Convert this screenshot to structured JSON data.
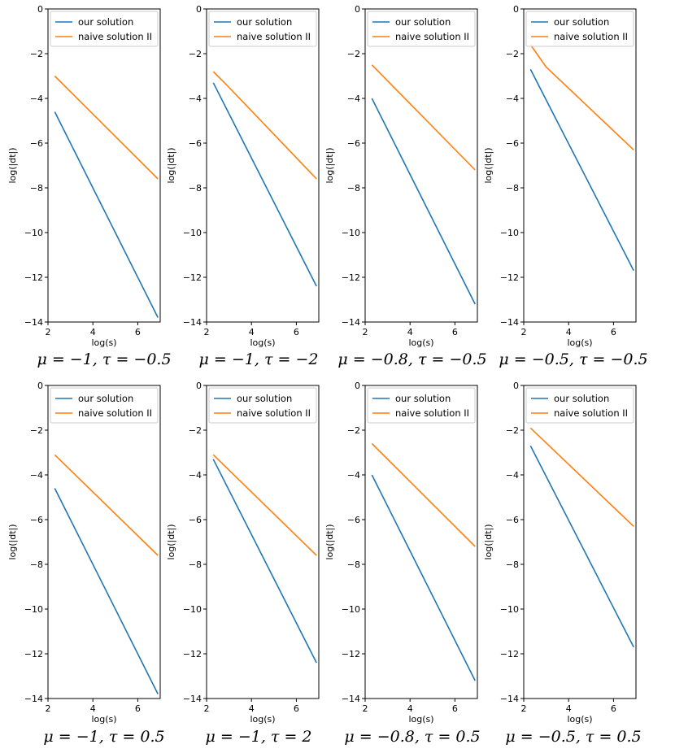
{
  "colors": {
    "our": "#1f77b4",
    "naive": "#ff7f0e"
  },
  "chart_data": [
    {
      "type": "line",
      "caption": "μ = −1, τ = −0.5",
      "xlabel": "log(s)",
      "ylabel": "log(|dt|)",
      "xlim": [
        2,
        7
      ],
      "ylim": [
        -14,
        0
      ],
      "xticks": [
        2,
        4,
        6
      ],
      "yticks": [
        0,
        -2,
        -4,
        -6,
        -8,
        -10,
        -12,
        -14
      ],
      "legend_position": "top-right",
      "series": [
        {
          "name": "our solution",
          "x": [
            2.3,
            6.9
          ],
          "y": [
            -4.6,
            -13.8
          ]
        },
        {
          "name": "naive solution II",
          "x": [
            2.3,
            6.9
          ],
          "y": [
            -3.0,
            -7.6
          ]
        }
      ]
    },
    {
      "type": "line",
      "caption": "μ = −1, τ = −2",
      "xlabel": "log(s)",
      "ylabel": "log(|dt|)",
      "xlim": [
        2,
        7
      ],
      "ylim": [
        -14,
        0
      ],
      "xticks": [
        2,
        4,
        6
      ],
      "yticks": [
        0,
        -2,
        -4,
        -6,
        -8,
        -10,
        -12,
        -14
      ],
      "legend_position": "top-right",
      "series": [
        {
          "name": "our solution",
          "x": [
            2.3,
            6.9
          ],
          "y": [
            -3.3,
            -12.4
          ]
        },
        {
          "name": "naive solution II",
          "x": [
            2.3,
            2.9,
            6.9
          ],
          "y": [
            -2.8,
            -3.4,
            -7.6
          ]
        }
      ]
    },
    {
      "type": "line",
      "caption": "μ = −0.8, τ = −0.5",
      "xlabel": "log(s)",
      "ylabel": "log(|dt|)",
      "xlim": [
        2,
        7
      ],
      "ylim": [
        -14,
        0
      ],
      "xticks": [
        2,
        4,
        6
      ],
      "yticks": [
        0,
        -2,
        -4,
        -6,
        -8,
        -10,
        -12,
        -14
      ],
      "legend_position": "top-right",
      "series": [
        {
          "name": "our solution",
          "x": [
            2.3,
            6.9
          ],
          "y": [
            -4.0,
            -13.2
          ]
        },
        {
          "name": "naive solution II",
          "x": [
            2.3,
            6.9
          ],
          "y": [
            -2.5,
            -7.2
          ]
        }
      ]
    },
    {
      "type": "line",
      "caption": "μ = −0.5, τ = −0.5",
      "xlabel": "log(s)",
      "ylabel": "log(|dt|)",
      "xlim": [
        2,
        7
      ],
      "ylim": [
        -14,
        0
      ],
      "xticks": [
        2,
        4,
        6
      ],
      "yticks": [
        0,
        -2,
        -4,
        -6,
        -8,
        -10,
        -12,
        -14
      ],
      "legend_position": "top-right",
      "series": [
        {
          "name": "our solution",
          "x": [
            2.3,
            6.9
          ],
          "y": [
            -2.7,
            -11.7
          ]
        },
        {
          "name": "naive solution II",
          "x": [
            2.3,
            3.0,
            6.9
          ],
          "y": [
            -1.6,
            -2.6,
            -6.3
          ]
        }
      ]
    },
    {
      "type": "line",
      "caption": "μ = −1, τ = 0.5",
      "xlabel": "log(s)",
      "ylabel": "log(|dt|)",
      "xlim": [
        2,
        7
      ],
      "ylim": [
        -14,
        0
      ],
      "xticks": [
        2,
        4,
        6
      ],
      "yticks": [
        0,
        -2,
        -4,
        -6,
        -8,
        -10,
        -12,
        -14
      ],
      "legend_position": "top-right",
      "series": [
        {
          "name": "our solution",
          "x": [
            2.3,
            6.9
          ],
          "y": [
            -4.6,
            -13.8
          ]
        },
        {
          "name": "naive solution II",
          "x": [
            2.3,
            6.9
          ],
          "y": [
            -3.1,
            -7.6
          ]
        }
      ]
    },
    {
      "type": "line",
      "caption": "μ = −1, τ = 2",
      "xlabel": "log(s)",
      "ylabel": "log(|dt|)",
      "xlim": [
        2,
        7
      ],
      "ylim": [
        -14,
        0
      ],
      "xticks": [
        2,
        4,
        6
      ],
      "yticks": [
        0,
        -2,
        -4,
        -6,
        -8,
        -10,
        -12,
        -14
      ],
      "legend_position": "top-right",
      "series": [
        {
          "name": "our solution",
          "x": [
            2.3,
            6.9
          ],
          "y": [
            -3.3,
            -12.4
          ]
        },
        {
          "name": "naive solution II",
          "x": [
            2.3,
            6.9
          ],
          "y": [
            -3.1,
            -7.6
          ]
        }
      ]
    },
    {
      "type": "line",
      "caption": "μ = −0.8, τ = 0.5",
      "xlabel": "log(s)",
      "ylabel": "log(|dt|)",
      "xlim": [
        2,
        7
      ],
      "ylim": [
        -14,
        0
      ],
      "xticks": [
        2,
        4,
        6
      ],
      "yticks": [
        0,
        -2,
        -4,
        -6,
        -8,
        -10,
        -12,
        -14
      ],
      "legend_position": "top-right",
      "series": [
        {
          "name": "our solution",
          "x": [
            2.3,
            6.9
          ],
          "y": [
            -4.0,
            -13.2
          ]
        },
        {
          "name": "naive solution II",
          "x": [
            2.3,
            6.9
          ],
          "y": [
            -2.6,
            -7.2
          ]
        }
      ]
    },
    {
      "type": "line",
      "caption": "μ = −0.5, τ = 0.5",
      "xlabel": "log(s)",
      "ylabel": "log(|dt|)",
      "xlim": [
        2,
        7
      ],
      "ylim": [
        -14,
        0
      ],
      "xticks": [
        2,
        4,
        6
      ],
      "yticks": [
        0,
        -2,
        -4,
        -6,
        -8,
        -10,
        -12,
        -14
      ],
      "legend_position": "top-right",
      "series": [
        {
          "name": "our solution",
          "x": [
            2.3,
            6.9
          ],
          "y": [
            -2.7,
            -11.7
          ]
        },
        {
          "name": "naive solution II",
          "x": [
            2.3,
            6.9
          ],
          "y": [
            -1.9,
            -6.3
          ]
        }
      ]
    }
  ]
}
